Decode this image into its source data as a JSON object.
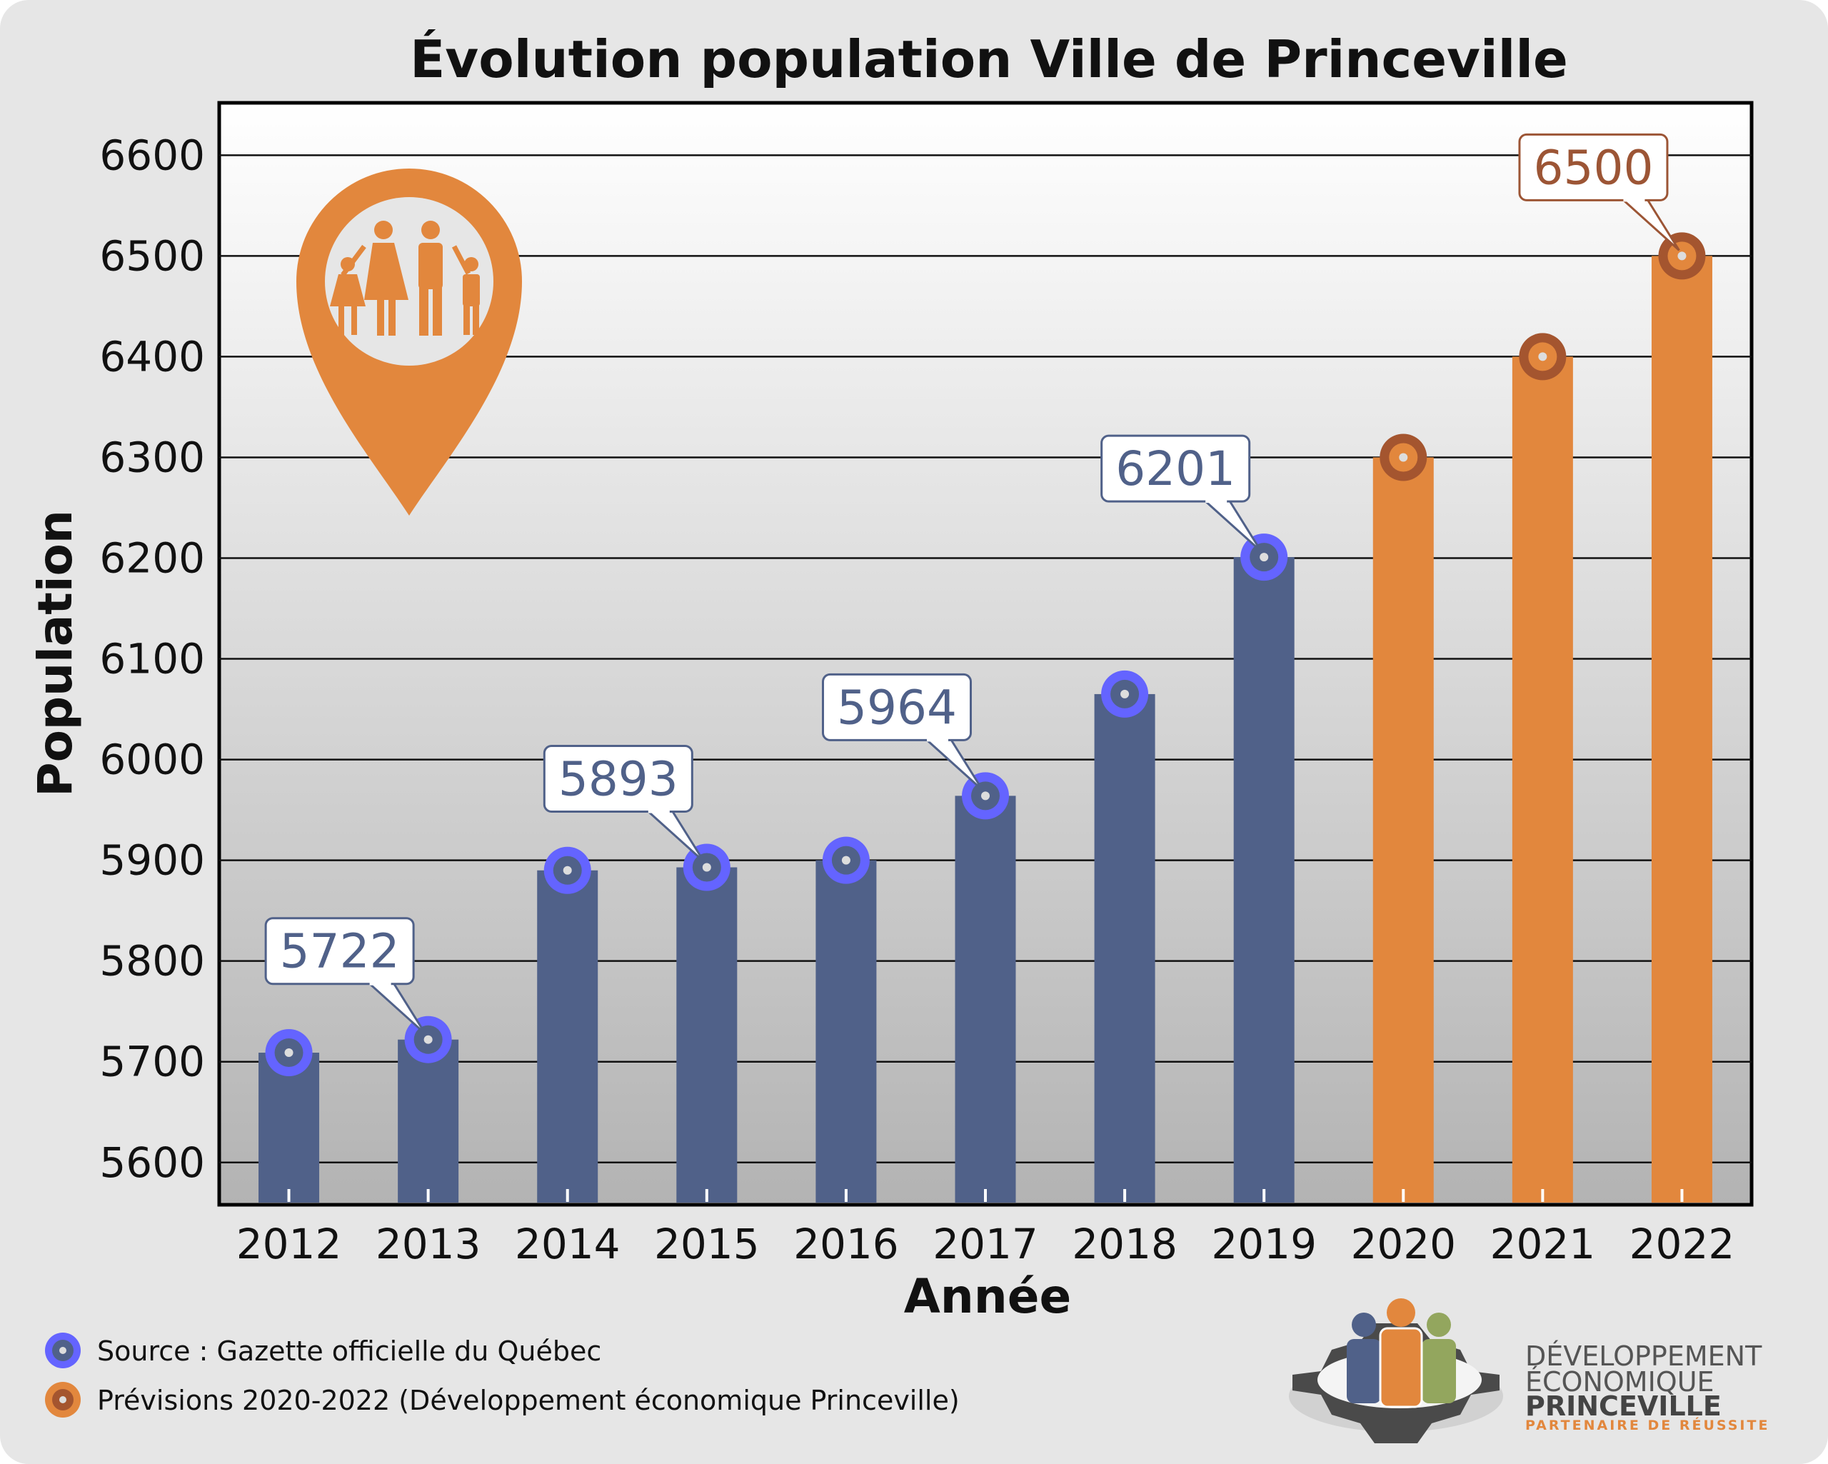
{
  "chart_data": {
    "type": "bar",
    "title": "Évolution population Ville de Princeville",
    "xlabel": "Année",
    "ylabel": "Population",
    "categories": [
      "2012",
      "2013",
      "2014",
      "2015",
      "2016",
      "2017",
      "2018",
      "2019",
      "2020",
      "2021",
      "2022"
    ],
    "series": [
      {
        "name": "Source : Gazette officielle du Québec",
        "color": "#506189",
        "marker_color": "#6464ff",
        "values": [
          5709,
          5722,
          5890,
          5893,
          5900,
          5964,
          6065,
          6201,
          null,
          null,
          null
        ]
      },
      {
        "name": "Prévisions 2020-2022 (Développement économique Princeville)",
        "color": "#e2873d",
        "marker_color": "#a4552f",
        "values": [
          null,
          null,
          null,
          null,
          null,
          null,
          null,
          null,
          6300,
          6400,
          6500
        ]
      }
    ],
    "yticks": [
      "5600",
      "5700",
      "5800",
      "5900",
      "6000",
      "6100",
      "6200",
      "6300",
      "6400",
      "6500",
      "6600"
    ],
    "ylim": [
      5558,
      6652
    ],
    "grid": true,
    "legend_placement": "bottom-left",
    "data_labels": [
      {
        "category": "2013",
        "text": "5722",
        "series": 0
      },
      {
        "category": "2015",
        "text": "5893",
        "series": 0
      },
      {
        "category": "2017",
        "text": "5964",
        "series": 0
      },
      {
        "category": "2019",
        "text": "6201",
        "series": 0
      },
      {
        "category": "2022",
        "text": "6500",
        "series": 1
      }
    ]
  },
  "logo": {
    "line1": "DÉVELOPPEMENT",
    "line2": "ÉCONOMIQUE",
    "line3": "PRINCEVILLE",
    "tagline": "PARTENAIRE DE RÉUSSITE"
  },
  "icons": {
    "pin": "map-pin-family-icon"
  },
  "colors": {
    "background": "#e6e6e6",
    "orange": "#e2873d",
    "blue": "#506189"
  }
}
